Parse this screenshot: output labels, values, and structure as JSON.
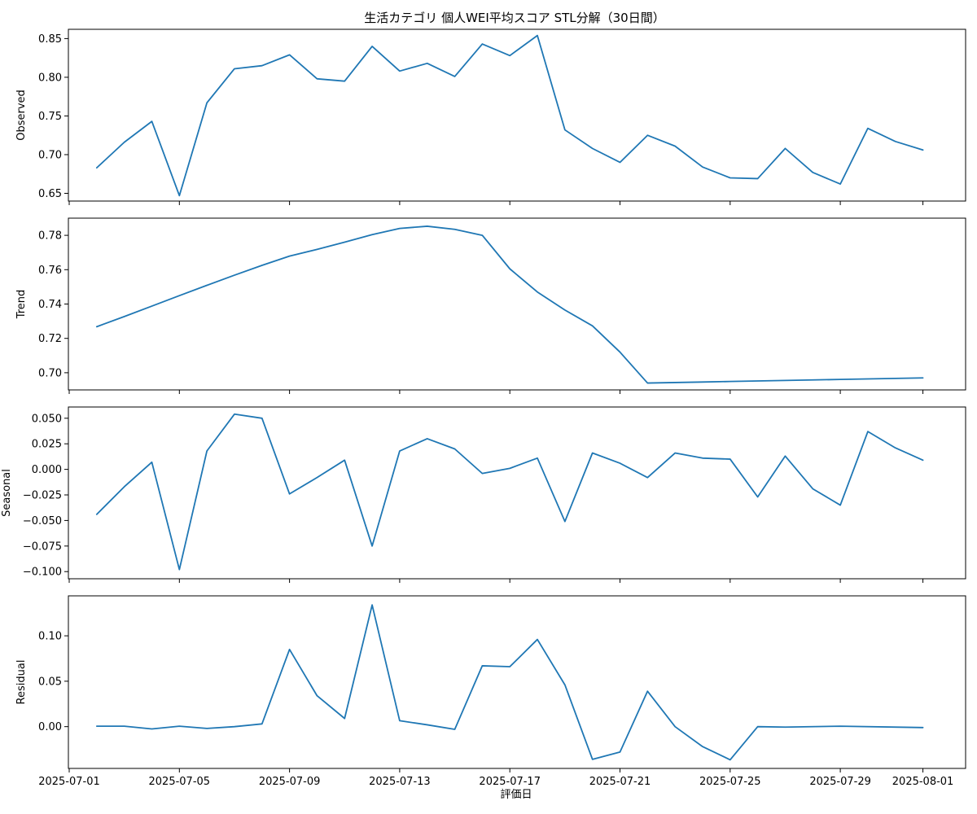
{
  "chart_data": {
    "type": "line",
    "title": "生活カテゴリ 個人WEI平均スコア STL分解（30日間）",
    "xlabel": "評価日",
    "x_tick_labels": [
      "2025-07-01",
      "2025-07-05",
      "2025-07-09",
      "2025-07-13",
      "2025-07-17",
      "2025-07-21",
      "2025-07-25",
      "2025-07-29",
      "2025-08-01"
    ],
    "x_tick_dates": [
      "2025-07-01",
      "2025-07-05",
      "2025-07-09",
      "2025-07-13",
      "2025-07-17",
      "2025-07-21",
      "2025-07-25",
      "2025-07-29",
      "2025-08-01"
    ],
    "x_range": [
      "2025-07-01",
      "2025-08-01"
    ],
    "line_color": "#1f77b4",
    "grid": false,
    "panels": [
      {
        "name": "observed",
        "ylabel": "Observed",
        "ylim": [
          0.64,
          0.862
        ],
        "yticks": [
          0.65,
          0.7,
          0.75,
          0.8,
          0.85
        ],
        "ytick_labels": [
          "0.65",
          "0.70",
          "0.75",
          "0.80",
          "0.85"
        ],
        "series": [
          {
            "x": "2025-07-02",
            "y": 0.683
          },
          {
            "x": "2025-07-03",
            "y": 0.716
          },
          {
            "x": "2025-07-04",
            "y": 0.743
          },
          {
            "x": "2025-07-05",
            "y": 0.647
          },
          {
            "x": "2025-07-06",
            "y": 0.767
          },
          {
            "x": "2025-07-07",
            "y": 0.811
          },
          {
            "x": "2025-07-08",
            "y": 0.815
          },
          {
            "x": "2025-07-09",
            "y": 0.829
          },
          {
            "x": "2025-07-10",
            "y": 0.798
          },
          {
            "x": "2025-07-11",
            "y": 0.795
          },
          {
            "x": "2025-07-12",
            "y": 0.84
          },
          {
            "x": "2025-07-13",
            "y": 0.808
          },
          {
            "x": "2025-07-14",
            "y": 0.818
          },
          {
            "x": "2025-07-15",
            "y": 0.801
          },
          {
            "x": "2025-07-16",
            "y": 0.843
          },
          {
            "x": "2025-07-17",
            "y": 0.828
          },
          {
            "x": "2025-07-18",
            "y": 0.854
          },
          {
            "x": "2025-07-19",
            "y": 0.732
          },
          {
            "x": "2025-07-20",
            "y": 0.708
          },
          {
            "x": "2025-07-21",
            "y": 0.69
          },
          {
            "x": "2025-07-22",
            "y": 0.725
          },
          {
            "x": "2025-07-23",
            "y": 0.711
          },
          {
            "x": "2025-07-24",
            "y": 0.684
          },
          {
            "x": "2025-07-25",
            "y": 0.67
          },
          {
            "x": "2025-07-26",
            "y": 0.669
          },
          {
            "x": "2025-07-27",
            "y": 0.708
          },
          {
            "x": "2025-07-28",
            "y": 0.677
          },
          {
            "x": "2025-07-29",
            "y": 0.662
          },
          {
            "x": "2025-07-30",
            "y": 0.734
          },
          {
            "x": "2025-07-31",
            "y": 0.717
          },
          {
            "x": "2025-08-01",
            "y": 0.706
          }
        ]
      },
      {
        "name": "trend",
        "ylabel": "Trend",
        "ylim": [
          0.69,
          0.79
        ],
        "yticks": [
          0.7,
          0.72,
          0.74,
          0.76,
          0.78
        ],
        "ytick_labels": [
          "0.70",
          "0.72",
          "0.74",
          "0.76",
          "0.78"
        ],
        "series": [
          {
            "x": "2025-07-02",
            "y": 0.7268
          },
          {
            "x": "2025-07-03",
            "y": 0.7327
          },
          {
            "x": "2025-07-04",
            "y": 0.7388
          },
          {
            "x": "2025-07-05",
            "y": 0.7449
          },
          {
            "x": "2025-07-06",
            "y": 0.7509
          },
          {
            "x": "2025-07-07",
            "y": 0.7568
          },
          {
            "x": "2025-07-08",
            "y": 0.7625
          },
          {
            "x": "2025-07-09",
            "y": 0.7679
          },
          {
            "x": "2025-07-10",
            "y": 0.7718
          },
          {
            "x": "2025-07-11",
            "y": 0.776
          },
          {
            "x": "2025-07-12",
            "y": 0.7804
          },
          {
            "x": "2025-07-13",
            "y": 0.784
          },
          {
            "x": "2025-07-14",
            "y": 0.7853
          },
          {
            "x": "2025-07-15",
            "y": 0.7835
          },
          {
            "x": "2025-07-16",
            "y": 0.78
          },
          {
            "x": "2025-07-17",
            "y": 0.7605
          },
          {
            "x": "2025-07-18",
            "y": 0.747
          },
          {
            "x": "2025-07-19",
            "y": 0.7365
          },
          {
            "x": "2025-07-20",
            "y": 0.7273
          },
          {
            "x": "2025-07-21",
            "y": 0.712
          },
          {
            "x": "2025-07-22",
            "y": 0.694
          },
          {
            "x": "2025-07-23",
            "y": 0.6943
          },
          {
            "x": "2025-07-24",
            "y": 0.6946
          },
          {
            "x": "2025-07-25",
            "y": 0.6949
          },
          {
            "x": "2025-07-26",
            "y": 0.6952
          },
          {
            "x": "2025-07-27",
            "y": 0.6955
          },
          {
            "x": "2025-07-28",
            "y": 0.6958
          },
          {
            "x": "2025-07-29",
            "y": 0.6961
          },
          {
            "x": "2025-07-30",
            "y": 0.6964
          },
          {
            "x": "2025-07-31",
            "y": 0.6967
          },
          {
            "x": "2025-08-01",
            "y": 0.697
          }
        ]
      },
      {
        "name": "seasonal",
        "ylabel": "Seasonal",
        "ylim": [
          -0.107,
          0.061
        ],
        "yticks": [
          -0.1,
          -0.075,
          -0.05,
          -0.025,
          0.0,
          0.025,
          0.05
        ],
        "ytick_labels": [
          "−0.100",
          "−0.075",
          "−0.050",
          "−0.025",
          "0.000",
          "0.025",
          "0.050"
        ],
        "series": [
          {
            "x": "2025-07-02",
            "y": -0.044
          },
          {
            "x": "2025-07-03",
            "y": -0.017
          },
          {
            "x": "2025-07-04",
            "y": 0.007
          },
          {
            "x": "2025-07-05",
            "y": -0.098
          },
          {
            "x": "2025-07-06",
            "y": 0.018
          },
          {
            "x": "2025-07-07",
            "y": 0.054
          },
          {
            "x": "2025-07-08",
            "y": 0.05
          },
          {
            "x": "2025-07-09",
            "y": -0.024
          },
          {
            "x": "2025-07-10",
            "y": -0.008
          },
          {
            "x": "2025-07-11",
            "y": 0.009
          },
          {
            "x": "2025-07-12",
            "y": -0.075
          },
          {
            "x": "2025-07-13",
            "y": 0.018
          },
          {
            "x": "2025-07-14",
            "y": 0.03
          },
          {
            "x": "2025-07-15",
            "y": 0.02
          },
          {
            "x": "2025-07-16",
            "y": -0.004
          },
          {
            "x": "2025-07-17",
            "y": 0.001
          },
          {
            "x": "2025-07-18",
            "y": 0.011
          },
          {
            "x": "2025-07-19",
            "y": -0.051
          },
          {
            "x": "2025-07-20",
            "y": 0.016
          },
          {
            "x": "2025-07-21",
            "y": 0.006
          },
          {
            "x": "2025-07-22",
            "y": -0.008
          },
          {
            "x": "2025-07-23",
            "y": 0.016
          },
          {
            "x": "2025-07-24",
            "y": 0.011
          },
          {
            "x": "2025-07-25",
            "y": 0.01
          },
          {
            "x": "2025-07-26",
            "y": -0.027
          },
          {
            "x": "2025-07-27",
            "y": 0.013
          },
          {
            "x": "2025-07-28",
            "y": -0.019
          },
          {
            "x": "2025-07-29",
            "y": -0.035
          },
          {
            "x": "2025-07-30",
            "y": 0.037
          },
          {
            "x": "2025-07-31",
            "y": 0.021
          },
          {
            "x": "2025-08-01",
            "y": 0.009
          }
        ]
      },
      {
        "name": "residual",
        "ylabel": "Residual",
        "ylim": [
          -0.046,
          0.144
        ],
        "yticks": [
          0.0,
          0.05,
          0.1
        ],
        "ytick_labels": [
          "0.00",
          "0.05",
          "0.10"
        ],
        "series": [
          {
            "x": "2025-07-02",
            "y": 0.0005
          },
          {
            "x": "2025-07-03",
            "y": 0.0005
          },
          {
            "x": "2025-07-04",
            "y": -0.0025
          },
          {
            "x": "2025-07-05",
            "y": 0.0005
          },
          {
            "x": "2025-07-06",
            "y": -0.002
          },
          {
            "x": "2025-07-07",
            "y": 0.0
          },
          {
            "x": "2025-07-08",
            "y": 0.003
          },
          {
            "x": "2025-07-09",
            "y": 0.085
          },
          {
            "x": "2025-07-10",
            "y": 0.034
          },
          {
            "x": "2025-07-11",
            "y": 0.009
          },
          {
            "x": "2025-07-12",
            "y": 0.134
          },
          {
            "x": "2025-07-13",
            "y": 0.0065
          },
          {
            "x": "2025-07-14",
            "y": 0.002
          },
          {
            "x": "2025-07-15",
            "y": -0.003
          },
          {
            "x": "2025-07-16",
            "y": 0.067
          },
          {
            "x": "2025-07-17",
            "y": 0.066
          },
          {
            "x": "2025-07-18",
            "y": 0.096
          },
          {
            "x": "2025-07-19",
            "y": 0.046
          },
          {
            "x": "2025-07-20",
            "y": -0.036
          },
          {
            "x": "2025-07-21",
            "y": -0.028
          },
          {
            "x": "2025-07-22",
            "y": 0.039
          },
          {
            "x": "2025-07-23",
            "y": 0.0
          },
          {
            "x": "2025-07-24",
            "y": -0.022
          },
          {
            "x": "2025-07-25",
            "y": -0.0365
          },
          {
            "x": "2025-07-26",
            "y": 0.0
          },
          {
            "x": "2025-07-27",
            "y": -0.0005
          },
          {
            "x": "2025-07-29",
            "y": 0.0005
          },
          {
            "x": "2025-08-01",
            "y": -0.001
          }
        ]
      }
    ]
  }
}
